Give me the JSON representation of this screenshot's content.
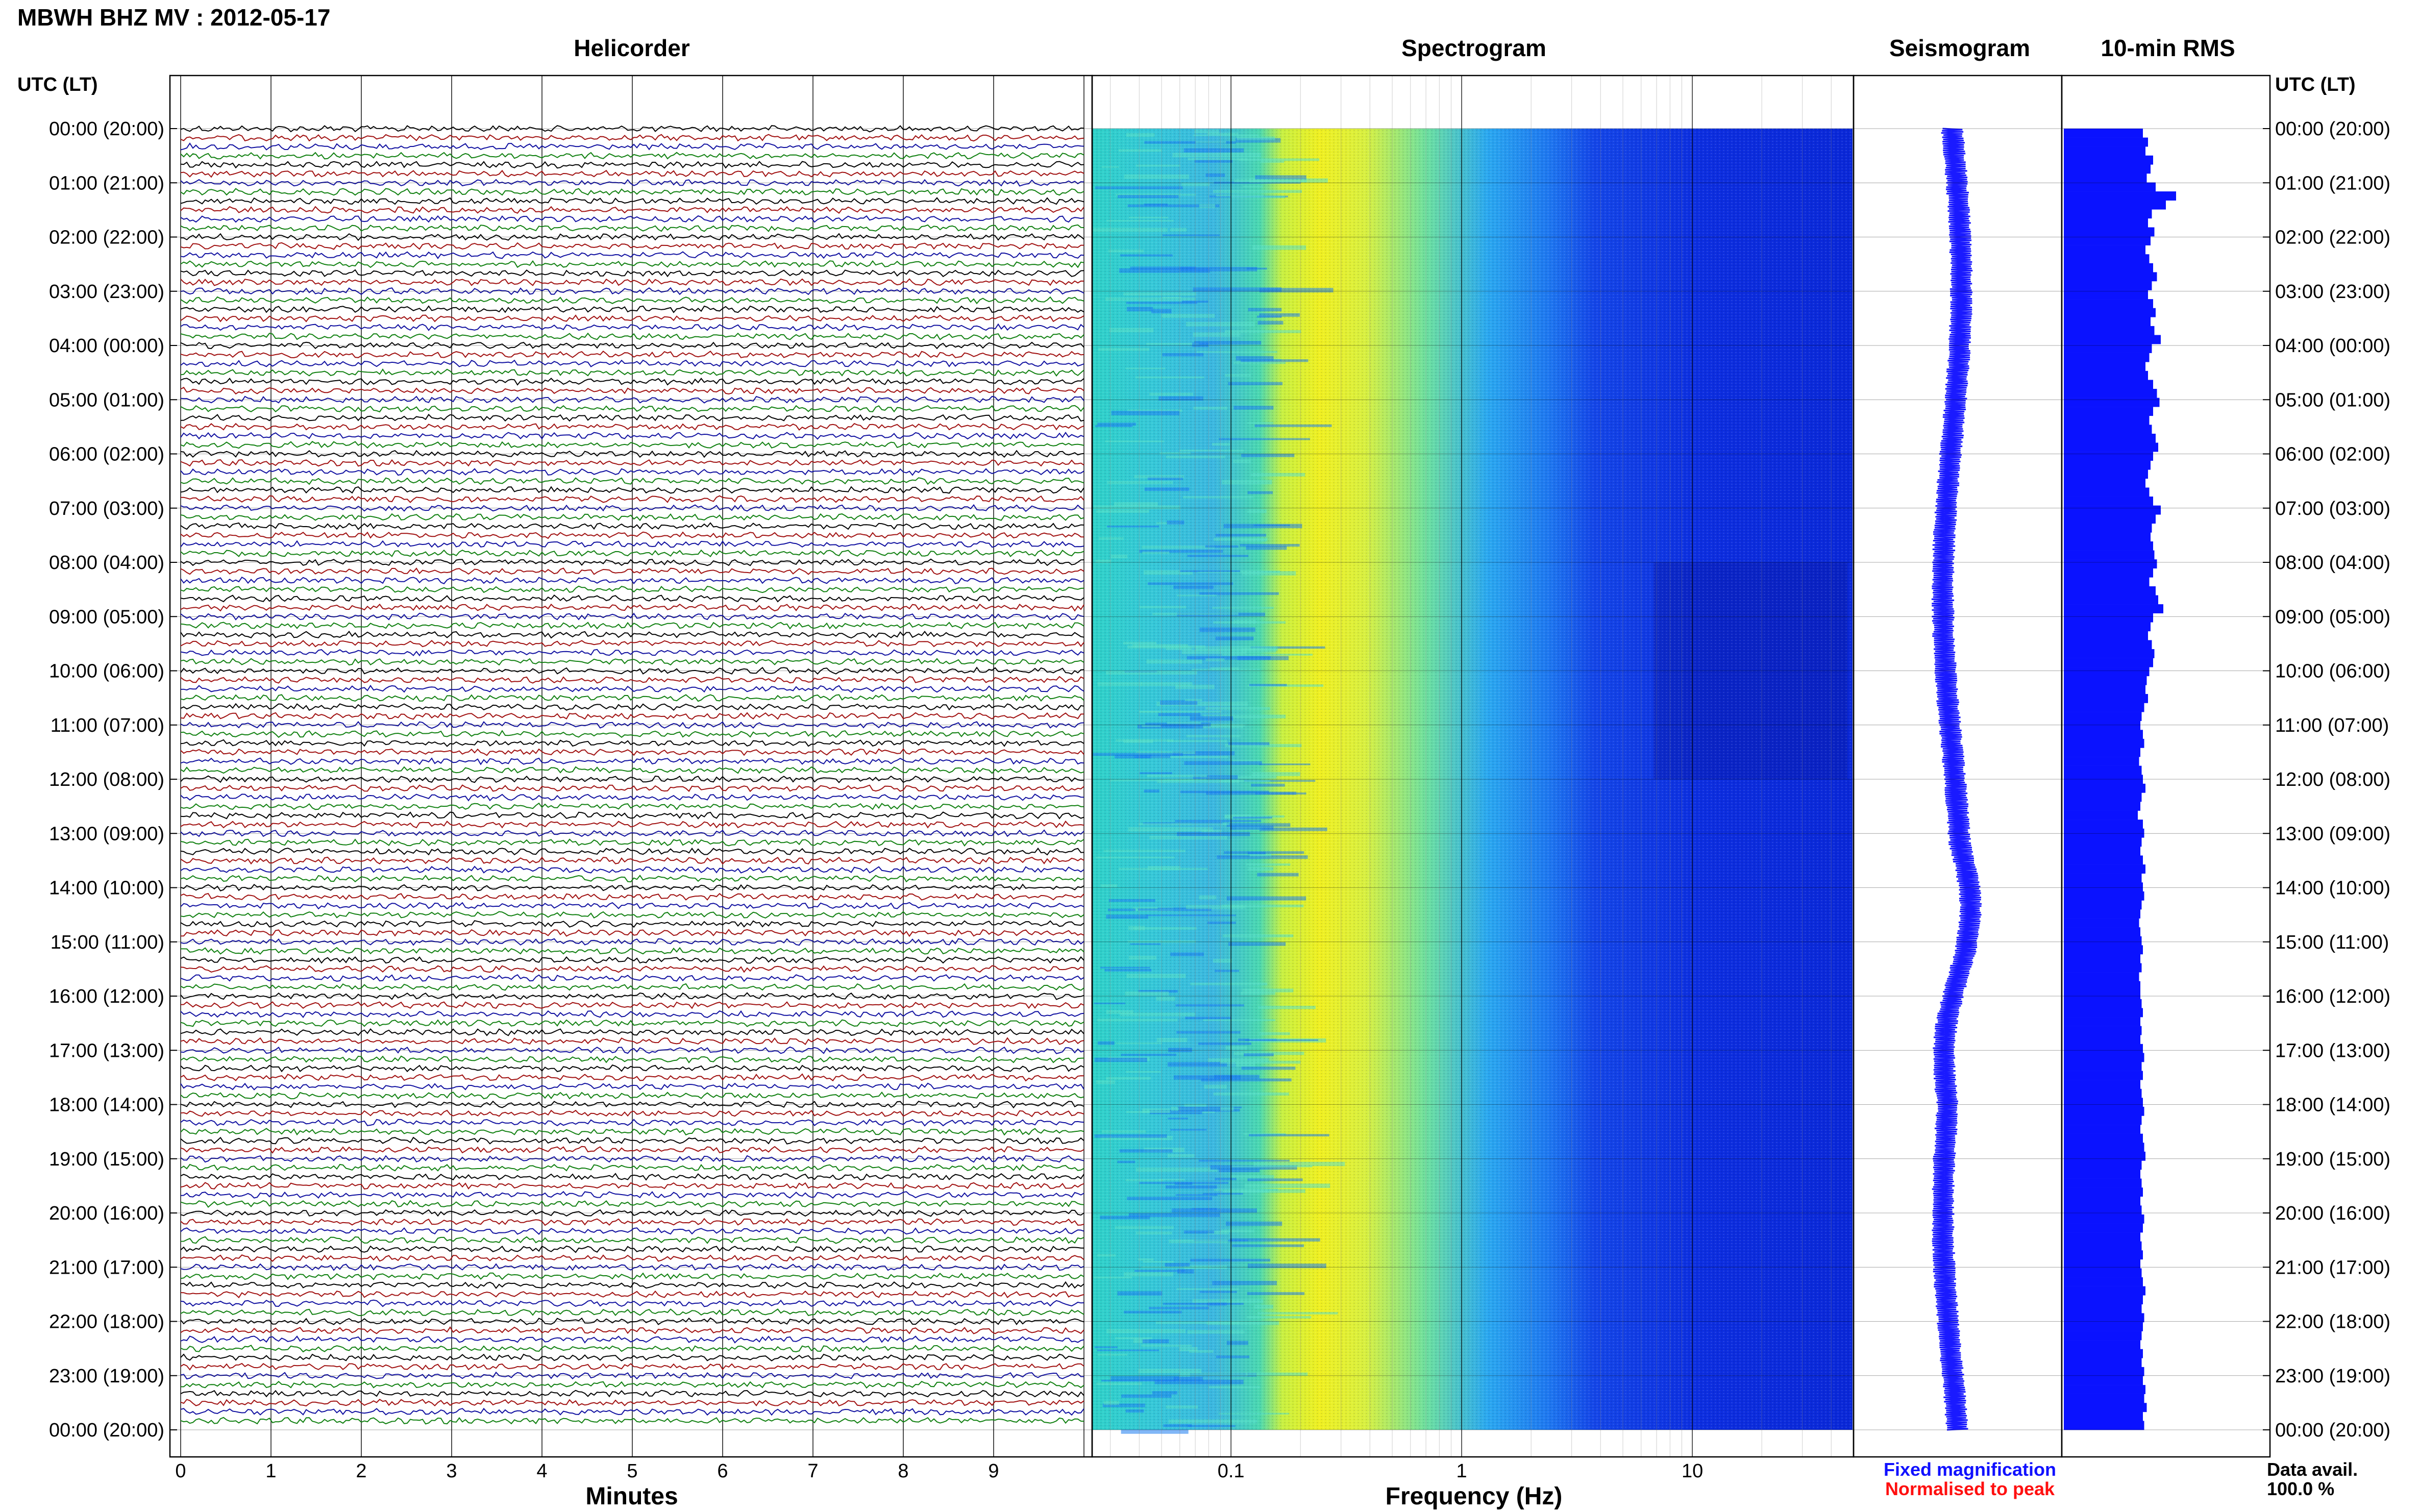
{
  "header": {
    "title": "MBWH BHZ MV : 2012-05-17"
  },
  "panels": {
    "helicorder": "Helicorder",
    "spectrogram": "Spectrogram",
    "seismogram": "Seismogram",
    "rms": "10-min RMS"
  },
  "axis": {
    "left_header": "UTC (LT)",
    "right_header": "UTC (LT)",
    "minutes_label": "Minutes",
    "frequency_label": "Frequency (Hz)"
  },
  "legend": {
    "fixed": "Fixed magnification",
    "normalised": "Normalised to peak",
    "fixed_color": "#1010ff",
    "normalised_color": "#ff1010"
  },
  "availability": {
    "label": "Data avail.",
    "value": "100.0 %"
  },
  "colors": {
    "trace_cycle": [
      "#000000",
      "#a01010",
      "#1010a0",
      "#108010"
    ],
    "rms_fill": "#0a12ff",
    "seismo_line": "#1a1aff"
  },
  "chart_data": {
    "type": "heatmap",
    "time_labels": [
      "00:00 (20:00)",
      "01:00 (21:00)",
      "02:00 (22:00)",
      "03:00 (23:00)",
      "04:00 (00:00)",
      "05:00 (01:00)",
      "06:00 (02:00)",
      "07:00 (03:00)",
      "08:00 (04:00)",
      "09:00 (05:00)",
      "10:00 (06:00)",
      "11:00 (07:00)",
      "12:00 (08:00)",
      "13:00 (09:00)",
      "14:00 (10:00)",
      "15:00 (11:00)",
      "16:00 (12:00)",
      "17:00 (13:00)",
      "18:00 (14:00)",
      "19:00 (15:00)",
      "20:00 (16:00)",
      "21:00 (17:00)",
      "22:00 (18:00)",
      "23:00 (19:00)",
      "00:00 (20:00)"
    ],
    "minute_ticks": [
      "0",
      "1",
      "2",
      "3",
      "4",
      "5",
      "6",
      "7",
      "8",
      "9"
    ],
    "frequency_ticks": [
      "0.1",
      "1",
      "10"
    ],
    "frequency_range_hz": [
      0.025,
      50
    ],
    "xlabel_helicorder": "Minutes",
    "xlabel_spectrogram": "Frequency (Hz)",
    "traces_per_hour": 6,
    "hours": 24,
    "rms_10min": [
      0.62,
      0.66,
      0.64,
      0.7,
      0.68,
      0.65,
      0.72,
      0.88,
      0.8,
      0.69,
      0.66,
      0.71,
      0.68,
      0.64,
      0.67,
      0.7,
      0.73,
      0.69,
      0.66,
      0.7,
      0.72,
      0.68,
      0.71,
      0.76,
      0.69,
      0.67,
      0.64,
      0.66,
      0.7,
      0.73,
      0.75,
      0.7,
      0.67,
      0.69,
      0.72,
      0.74,
      0.7,
      0.68,
      0.66,
      0.64,
      0.67,
      0.7,
      0.76,
      0.72,
      0.69,
      0.68,
      0.7,
      0.71,
      0.73,
      0.7,
      0.67,
      0.72,
      0.74,
      0.78,
      0.7,
      0.68,
      0.66,
      0.69,
      0.71,
      0.7,
      0.67,
      0.65,
      0.64,
      0.66,
      0.63,
      0.61,
      0.6,
      0.62,
      0.63,
      0.6,
      0.59,
      0.61,
      0.62,
      0.64,
      0.61,
      0.6,
      0.58,
      0.62,
      0.63,
      0.61,
      0.6,
      0.62,
      0.64,
      0.61,
      0.62,
      0.63,
      0.61,
      0.6,
      0.59,
      0.6,
      0.61,
      0.62,
      0.6,
      0.61,
      0.59,
      0.6,
      0.6,
      0.61,
      0.62,
      0.6,
      0.61,
      0.6,
      0.62,
      0.63,
      0.61,
      0.62,
      0.6,
      0.61,
      0.62,
      0.63,
      0.61,
      0.6,
      0.62,
      0.63,
      0.64,
      0.61,
      0.6,
      0.61,
      0.62,
      0.6,
      0.61,
      0.63,
      0.62,
      0.6,
      0.61,
      0.62,
      0.6,
      0.61,
      0.62,
      0.64,
      0.62,
      0.61,
      0.63,
      0.62,
      0.61,
      0.6,
      0.62,
      0.61,
      0.63,
      0.62,
      0.64,
      0.63,
      0.65,
      0.62,
      0.63
    ]
  }
}
